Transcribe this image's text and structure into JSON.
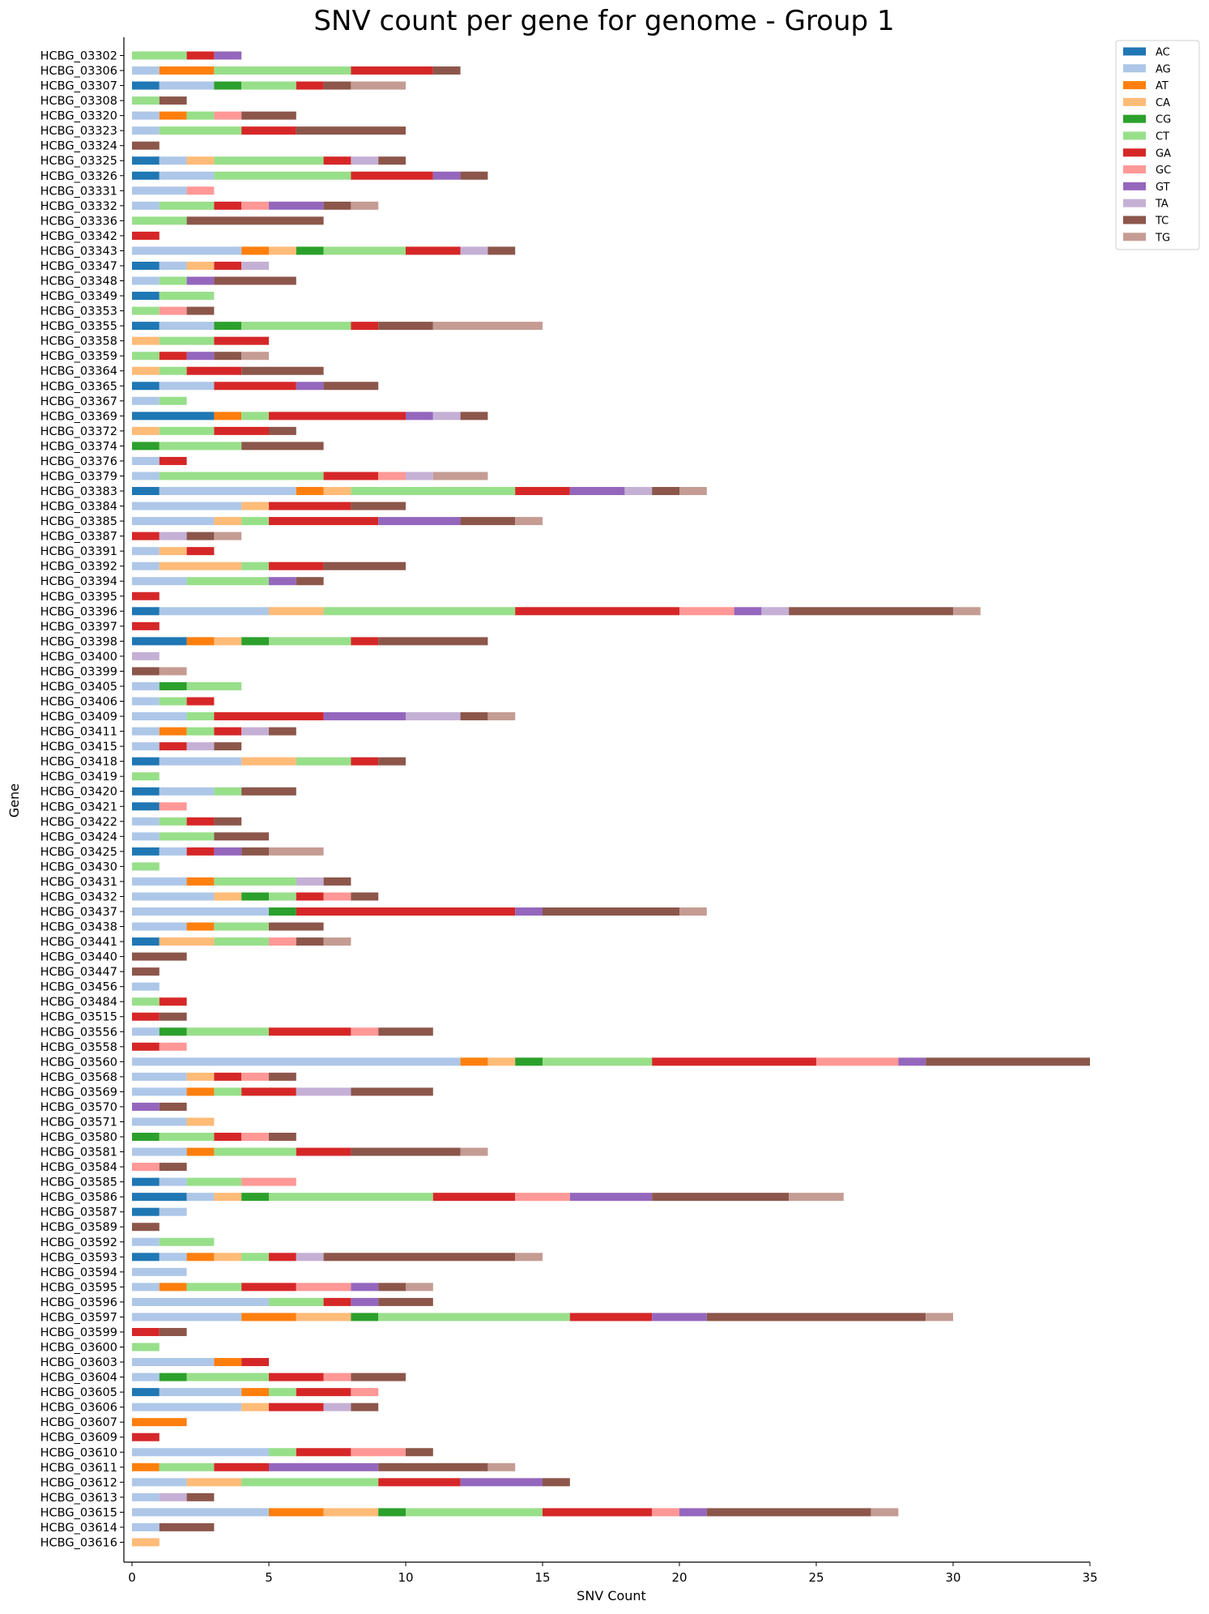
{
  "chart_data": {
    "type": "bar",
    "orientation": "horizontal",
    "stacked": true,
    "title": "SNV count per gene for genome - Group 1",
    "xlabel": "SNV Count",
    "ylabel": "Gene",
    "xlim": [
      0,
      35
    ],
    "xticks": [
      "0",
      "5",
      "10",
      "15",
      "20",
      "25",
      "30",
      "35"
    ],
    "grid": false,
    "legend_position": "top-right outside",
    "categories": [
      "HCBG_03302",
      "HCBG_03306",
      "HCBG_03307",
      "HCBG_03308",
      "HCBG_03320",
      "HCBG_03323",
      "HCBG_03324",
      "HCBG_03325",
      "HCBG_03326",
      "HCBG_03331",
      "HCBG_03332",
      "HCBG_03336",
      "HCBG_03342",
      "HCBG_03343",
      "HCBG_03347",
      "HCBG_03348",
      "HCBG_03349",
      "HCBG_03353",
      "HCBG_03355",
      "HCBG_03358",
      "HCBG_03359",
      "HCBG_03364",
      "HCBG_03365",
      "HCBG_03367",
      "HCBG_03369",
      "HCBG_03372",
      "HCBG_03374",
      "HCBG_03376",
      "HCBG_03379",
      "HCBG_03383",
      "HCBG_03384",
      "HCBG_03385",
      "HCBG_03387",
      "HCBG_03391",
      "HCBG_03392",
      "HCBG_03394",
      "HCBG_03395",
      "HCBG_03396",
      "HCBG_03397",
      "HCBG_03398",
      "HCBG_03400",
      "HCBG_03399",
      "HCBG_03405",
      "HCBG_03406",
      "HCBG_03409",
      "HCBG_03411",
      "HCBG_03415",
      "HCBG_03418",
      "HCBG_03419",
      "HCBG_03420",
      "HCBG_03421",
      "HCBG_03422",
      "HCBG_03424",
      "HCBG_03425",
      "HCBG_03430",
      "HCBG_03431",
      "HCBG_03432",
      "HCBG_03437",
      "HCBG_03438",
      "HCBG_03441",
      "HCBG_03440",
      "HCBG_03447",
      "HCBG_03456",
      "HCBG_03484",
      "HCBG_03515",
      "HCBG_03556",
      "HCBG_03558",
      "HCBG_03560",
      "HCBG_03568",
      "HCBG_03569",
      "HCBG_03570",
      "HCBG_03571",
      "HCBG_03580",
      "HCBG_03581",
      "HCBG_03584",
      "HCBG_03585",
      "HCBG_03586",
      "HCBG_03587",
      "HCBG_03589",
      "HCBG_03592",
      "HCBG_03593",
      "HCBG_03594",
      "HCBG_03595",
      "HCBG_03596",
      "HCBG_03597",
      "HCBG_03599",
      "HCBG_03600",
      "HCBG_03603",
      "HCBG_03604",
      "HCBG_03605",
      "HCBG_03606",
      "HCBG_03607",
      "HCBG_03609",
      "HCBG_03610",
      "HCBG_03611",
      "HCBG_03612",
      "HCBG_03613",
      "HCBG_03615",
      "HCBG_03614",
      "HCBG_03616"
    ],
    "series": [
      {
        "name": "AC",
        "color": "#1f77b4",
        "values": [
          0,
          0,
          1,
          0,
          0,
          0,
          0,
          1,
          1,
          0,
          0,
          0,
          0,
          0,
          1,
          0,
          1,
          0,
          1,
          0,
          0,
          0,
          1,
          0,
          3,
          0,
          0,
          0,
          0,
          1,
          0,
          0,
          0,
          0,
          0,
          0,
          0,
          1,
          0,
          2,
          0,
          0,
          0,
          0,
          0,
          0,
          0,
          1,
          0,
          1,
          1,
          0,
          0,
          1,
          0,
          0,
          0,
          0,
          0,
          1,
          0,
          0,
          0,
          0,
          0,
          0,
          0,
          0,
          0,
          0,
          0,
          0,
          0,
          0,
          0,
          1,
          2,
          1,
          0,
          0,
          1,
          0,
          0,
          0,
          0,
          0,
          0,
          0,
          0,
          1,
          0,
          0,
          0,
          0,
          0,
          0,
          0,
          0,
          0,
          0
        ]
      },
      {
        "name": "AG",
        "color": "#aec7e8",
        "values": [
          0,
          1,
          2,
          0,
          1,
          1,
          0,
          1,
          2,
          2,
          1,
          0,
          0,
          4,
          1,
          1,
          0,
          0,
          2,
          0,
          0,
          0,
          2,
          1,
          0,
          0,
          0,
          1,
          1,
          5,
          4,
          3,
          0,
          1,
          1,
          2,
          0,
          4,
          0,
          0,
          0,
          0,
          1,
          1,
          2,
          1,
          1,
          3,
          0,
          2,
          0,
          1,
          1,
          1,
          0,
          2,
          3,
          5,
          2,
          0,
          0,
          0,
          1,
          0,
          0,
          1,
          0,
          12,
          2,
          2,
          0,
          2,
          0,
          2,
          0,
          1,
          1,
          1,
          0,
          1,
          1,
          2,
          1,
          5,
          4,
          0,
          0,
          3,
          1,
          3,
          4,
          0,
          0,
          5,
          0,
          2,
          1,
          5,
          1,
          0
        ]
      },
      {
        "name": "AT",
        "color": "#ff7f0e",
        "values": [
          0,
          2,
          0,
          0,
          1,
          0,
          0,
          0,
          0,
          0,
          0,
          0,
          0,
          1,
          0,
          0,
          0,
          0,
          0,
          0,
          0,
          0,
          0,
          0,
          1,
          0,
          0,
          0,
          0,
          1,
          0,
          0,
          0,
          0,
          0,
          0,
          0,
          0,
          0,
          1,
          0,
          0,
          0,
          0,
          0,
          1,
          0,
          0,
          0,
          0,
          0,
          0,
          0,
          0,
          0,
          1,
          0,
          0,
          1,
          0,
          0,
          0,
          0,
          0,
          0,
          0,
          0,
          1,
          0,
          1,
          0,
          0,
          0,
          1,
          0,
          0,
          0,
          0,
          0,
          0,
          1,
          0,
          1,
          0,
          2,
          0,
          0,
          1,
          0,
          1,
          0,
          2,
          0,
          0,
          1,
          0,
          0,
          2,
          0,
          0
        ]
      },
      {
        "name": "CA",
        "color": "#ffbb78",
        "values": [
          0,
          0,
          0,
          0,
          0,
          0,
          0,
          1,
          0,
          0,
          0,
          0,
          0,
          1,
          1,
          0,
          0,
          0,
          0,
          1,
          0,
          1,
          0,
          0,
          0,
          1,
          0,
          0,
          0,
          1,
          1,
          1,
          0,
          1,
          3,
          0,
          0,
          2,
          0,
          1,
          0,
          0,
          0,
          0,
          0,
          0,
          0,
          2,
          0,
          0,
          0,
          0,
          0,
          0,
          0,
          0,
          1,
          0,
          0,
          2,
          0,
          0,
          0,
          0,
          0,
          0,
          0,
          1,
          1,
          0,
          0,
          1,
          0,
          0,
          0,
          0,
          1,
          0,
          0,
          0,
          1,
          0,
          0,
          0,
          2,
          0,
          0,
          0,
          0,
          0,
          1,
          0,
          0,
          0,
          0,
          2,
          0,
          2,
          0,
          1
        ]
      },
      {
        "name": "CG",
        "color": "#2ca02c",
        "values": [
          0,
          0,
          1,
          0,
          0,
          0,
          0,
          0,
          0,
          0,
          0,
          0,
          0,
          1,
          0,
          0,
          0,
          0,
          1,
          0,
          0,
          0,
          0,
          0,
          0,
          0,
          1,
          0,
          0,
          0,
          0,
          0,
          0,
          0,
          0,
          0,
          0,
          0,
          0,
          1,
          0,
          0,
          1,
          0,
          0,
          0,
          0,
          0,
          0,
          0,
          0,
          0,
          0,
          0,
          0,
          0,
          1,
          1,
          0,
          0,
          0,
          0,
          0,
          0,
          0,
          1,
          0,
          1,
          0,
          0,
          0,
          0,
          1,
          0,
          0,
          0,
          1,
          0,
          0,
          0,
          0,
          0,
          0,
          0,
          1,
          0,
          0,
          0,
          1,
          0,
          0,
          0,
          0,
          0,
          0,
          0,
          0,
          1,
          0,
          0
        ]
      },
      {
        "name": "CT",
        "color": "#98df8a",
        "values": [
          2,
          5,
          2,
          1,
          1,
          3,
          0,
          4,
          5,
          0,
          2,
          2,
          0,
          3,
          0,
          1,
          2,
          1,
          4,
          2,
          1,
          1,
          0,
          1,
          1,
          2,
          3,
          0,
          6,
          6,
          0,
          1,
          0,
          0,
          1,
          3,
          0,
          7,
          0,
          3,
          0,
          0,
          2,
          1,
          1,
          1,
          0,
          2,
          1,
          1,
          0,
          1,
          2,
          0,
          1,
          3,
          1,
          0,
          2,
          2,
          0,
          0,
          0,
          1,
          0,
          3,
          0,
          4,
          0,
          1,
          0,
          0,
          2,
          3,
          0,
          2,
          6,
          0,
          0,
          2,
          1,
          0,
          2,
          2,
          7,
          0,
          1,
          0,
          3,
          1,
          0,
          0,
          0,
          1,
          2,
          5,
          0,
          5,
          0,
          0
        ]
      },
      {
        "name": "GA",
        "color": "#d62728",
        "values": [
          1,
          3,
          1,
          0,
          0,
          2,
          0,
          1,
          3,
          0,
          1,
          0,
          1,
          2,
          1,
          0,
          0,
          0,
          1,
          2,
          1,
          2,
          3,
          0,
          5,
          2,
          0,
          1,
          2,
          2,
          3,
          4,
          1,
          1,
          2,
          0,
          1,
          6,
          1,
          1,
          0,
          0,
          0,
          1,
          4,
          1,
          1,
          1,
          0,
          0,
          0,
          1,
          0,
          1,
          0,
          0,
          1,
          8,
          0,
          0,
          0,
          0,
          0,
          1,
          1,
          3,
          1,
          6,
          1,
          2,
          0,
          0,
          1,
          2,
          0,
          0,
          3,
          0,
          0,
          0,
          1,
          0,
          2,
          1,
          3,
          1,
          0,
          1,
          2,
          2,
          2,
          0,
          1,
          2,
          2,
          3,
          0,
          4,
          0,
          0
        ]
      },
      {
        "name": "GC",
        "color": "#ff9896",
        "values": [
          0,
          0,
          0,
          0,
          1,
          0,
          0,
          0,
          0,
          1,
          1,
          0,
          0,
          0,
          0,
          0,
          0,
          1,
          0,
          0,
          0,
          0,
          0,
          0,
          0,
          0,
          0,
          0,
          1,
          0,
          0,
          0,
          0,
          0,
          0,
          0,
          0,
          2,
          0,
          0,
          0,
          0,
          0,
          0,
          0,
          0,
          0,
          0,
          0,
          0,
          1,
          0,
          0,
          0,
          0,
          0,
          1,
          0,
          0,
          1,
          0,
          0,
          0,
          0,
          0,
          1,
          1,
          3,
          1,
          0,
          0,
          0,
          1,
          0,
          1,
          2,
          2,
          0,
          0,
          0,
          0,
          0,
          2,
          0,
          0,
          0,
          0,
          0,
          1,
          1,
          0,
          0,
          0,
          2,
          0,
          0,
          0,
          1,
          0,
          0
        ]
      },
      {
        "name": "GT",
        "color": "#9467bd",
        "values": [
          1,
          0,
          0,
          0,
          0,
          0,
          0,
          0,
          1,
          0,
          2,
          0,
          0,
          0,
          0,
          1,
          0,
          0,
          0,
          0,
          1,
          0,
          1,
          0,
          1,
          0,
          0,
          0,
          0,
          2,
          0,
          3,
          0,
          0,
          0,
          1,
          0,
          1,
          0,
          0,
          0,
          0,
          0,
          0,
          3,
          0,
          0,
          0,
          0,
          0,
          0,
          0,
          0,
          1,
          0,
          0,
          0,
          1,
          0,
          0,
          0,
          0,
          0,
          0,
          0,
          0,
          0,
          1,
          0,
          0,
          1,
          0,
          0,
          0,
          0,
          0,
          3,
          0,
          0,
          0,
          0,
          0,
          1,
          1,
          2,
          0,
          0,
          0,
          0,
          0,
          0,
          0,
          0,
          0,
          4,
          3,
          0,
          1,
          0,
          0
        ]
      },
      {
        "name": "TA",
        "color": "#c5b0d5",
        "values": [
          0,
          0,
          0,
          0,
          0,
          0,
          0,
          1,
          0,
          0,
          0,
          0,
          0,
          1,
          1,
          0,
          0,
          0,
          0,
          0,
          0,
          0,
          0,
          0,
          1,
          0,
          0,
          0,
          1,
          1,
          0,
          0,
          1,
          0,
          0,
          0,
          0,
          1,
          0,
          0,
          1,
          0,
          0,
          0,
          2,
          1,
          1,
          0,
          0,
          0,
          0,
          0,
          0,
          0,
          0,
          1,
          0,
          0,
          0,
          0,
          0,
          0,
          0,
          0,
          0,
          0,
          0,
          0,
          0,
          2,
          0,
          0,
          0,
          0,
          0,
          0,
          0,
          0,
          0,
          0,
          1,
          0,
          0,
          0,
          0,
          0,
          0,
          0,
          0,
          0,
          1,
          0,
          0,
          0,
          0,
          0,
          1,
          0,
          0,
          0
        ]
      },
      {
        "name": "TC",
        "color": "#8c564b",
        "values": [
          0,
          1,
          1,
          1,
          2,
          4,
          1,
          1,
          1,
          0,
          1,
          5,
          0,
          1,
          0,
          3,
          0,
          1,
          2,
          0,
          1,
          3,
          2,
          0,
          1,
          1,
          3,
          0,
          0,
          1,
          2,
          2,
          1,
          0,
          3,
          1,
          0,
          6,
          0,
          4,
          0,
          1,
          0,
          0,
          1,
          1,
          1,
          1,
          0,
          2,
          0,
          1,
          2,
          1,
          0,
          1,
          1,
          5,
          2,
          1,
          2,
          1,
          0,
          0,
          1,
          2,
          0,
          6,
          1,
          3,
          1,
          0,
          1,
          4,
          1,
          0,
          5,
          0,
          1,
          0,
          7,
          0,
          1,
          2,
          8,
          1,
          0,
          0,
          2,
          0,
          1,
          0,
          0,
          1,
          4,
          1,
          1,
          6,
          2,
          0
        ]
      },
      {
        "name": "TG",
        "color": "#c49c94",
        "values": [
          0,
          0,
          2,
          0,
          0,
          0,
          0,
          0,
          0,
          0,
          1,
          0,
          0,
          0,
          0,
          0,
          0,
          0,
          4,
          0,
          1,
          0,
          0,
          0,
          0,
          0,
          0,
          0,
          2,
          1,
          0,
          1,
          1,
          0,
          0,
          0,
          0,
          1,
          0,
          0,
          0,
          1,
          0,
          0,
          1,
          0,
          0,
          0,
          0,
          0,
          0,
          0,
          0,
          2,
          0,
          0,
          0,
          1,
          0,
          1,
          0,
          0,
          0,
          0,
          0,
          0,
          0,
          0,
          0,
          0,
          0,
          0,
          0,
          1,
          0,
          0,
          2,
          0,
          0,
          0,
          1,
          0,
          1,
          0,
          1,
          0,
          0,
          0,
          0,
          0,
          0,
          0,
          0,
          0,
          1,
          0,
          0,
          1,
          0,
          0
        ]
      }
    ]
  }
}
